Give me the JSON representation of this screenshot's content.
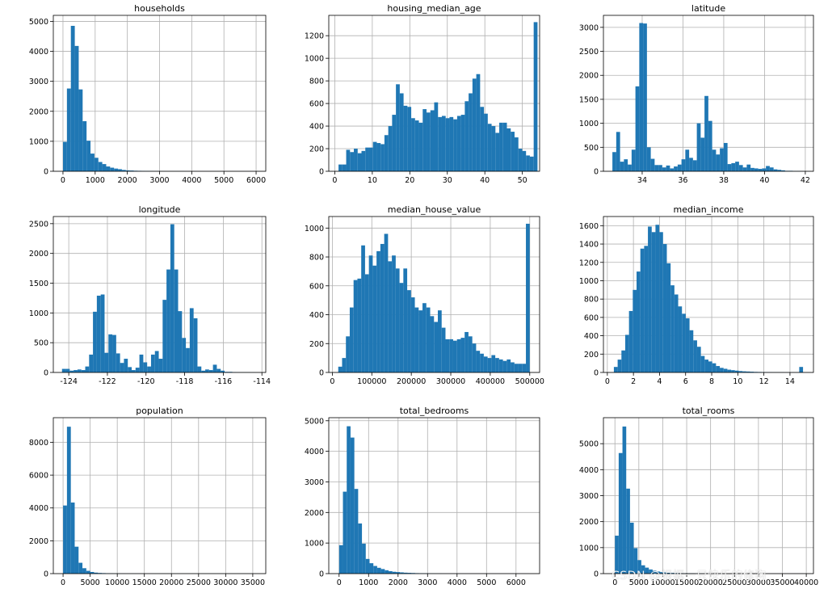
{
  "bar_color": "#1f77b4",
  "watermark": "CSDN @根据一只快乐的修狗",
  "chart_data": [
    {
      "type": "bar",
      "title": "households",
      "xlim": [
        -300,
        6300
      ],
      "ylim": [
        0,
        5200
      ],
      "xticks": [
        0,
        1000,
        2000,
        3000,
        4000,
        5000,
        6000
      ],
      "yticks": [
        0,
        1000,
        2000,
        3000,
        4000,
        5000
      ],
      "xtick_labels": [
        "0",
        "1000",
        "2000",
        "3000",
        "4000",
        "5000",
        "6000"
      ],
      "ytick_labels": [
        "0",
        "1000",
        "2000",
        "3000",
        "4000",
        "5000"
      ],
      "bin_start": 1,
      "bin_width": 122,
      "values": [
        980,
        2760,
        4850,
        4180,
        2730,
        1670,
        1020,
        590,
        450,
        310,
        240,
        160,
        120,
        90,
        70,
        45,
        30,
        25,
        18,
        15,
        12,
        10,
        8,
        6,
        5,
        4,
        3,
        3,
        2,
        2,
        2,
        1,
        1,
        1,
        1,
        1,
        1,
        1,
        1,
        1,
        1,
        1,
        1,
        1,
        1,
        1,
        1,
        1,
        1,
        1
      ]
    },
    {
      "type": "bar",
      "title": "housing_median_age",
      "xlim": [
        -1.6,
        54.6
      ],
      "ylim": [
        0,
        1380
      ],
      "xticks": [
        0,
        10,
        20,
        30,
        40,
        50
      ],
      "yticks": [
        0,
        200,
        400,
        600,
        800,
        1000,
        1200
      ],
      "xtick_labels": [
        "0",
        "10",
        "20",
        "30",
        "40",
        "50"
      ],
      "ytick_labels": [
        "0",
        "200",
        "400",
        "600",
        "800",
        "1000",
        "1200"
      ],
      "bin_start": 1,
      "bin_width": 1.02,
      "values": [
        60,
        60,
        190,
        170,
        200,
        160,
        180,
        210,
        210,
        260,
        250,
        240,
        320,
        400,
        500,
        770,
        690,
        580,
        570,
        470,
        450,
        430,
        550,
        520,
        540,
        610,
        480,
        490,
        470,
        480,
        460,
        490,
        500,
        620,
        690,
        820,
        860,
        570,
        510,
        420,
        400,
        340,
        430,
        430,
        380,
        350,
        300,
        200,
        180,
        140,
        130,
        1320
      ]
    },
    {
      "type": "bar",
      "title": "latitude",
      "xlim": [
        32.1,
        42.4
      ],
      "ylim": [
        0,
        3250
      ],
      "xticks": [
        34,
        36,
        38,
        40,
        42
      ],
      "yticks": [
        0,
        500,
        1000,
        1500,
        2000,
        2500,
        3000
      ],
      "xtick_labels": [
        "34",
        "36",
        "38",
        "40",
        "42"
      ],
      "ytick_labels": [
        "0",
        "500",
        "1000",
        "1500",
        "2000",
        "2500",
        "3000"
      ],
      "bin_start": 32.54,
      "bin_width": 0.1882,
      "values": [
        400,
        820,
        200,
        250,
        140,
        450,
        1770,
        3090,
        3080,
        500,
        260,
        130,
        130,
        80,
        120,
        60,
        100,
        140,
        250,
        450,
        280,
        230,
        1000,
        700,
        1570,
        1050,
        450,
        350,
        480,
        590,
        150,
        170,
        200,
        130,
        80,
        140,
        70,
        60,
        50,
        60,
        110,
        80,
        40,
        30,
        20,
        10,
        10,
        5,
        5,
        3
      ]
    },
    {
      "type": "bar",
      "title": "longitude",
      "xlim": [
        -124.8,
        -113.8
      ],
      "ylim": [
        0,
        2620
      ],
      "xticks": [
        -124,
        -122,
        -120,
        -118,
        -116,
        -114
      ],
      "yticks": [
        0,
        500,
        1000,
        1500,
        2000,
        2500
      ],
      "xtick_labels": [
        "-124",
        "-122",
        "-120",
        "-118",
        "-116",
        "-114"
      ],
      "ytick_labels": [
        "0",
        "500",
        "1000",
        "1500",
        "2000",
        "2500"
      ],
      "bin_start": -124.35,
      "bin_width": 0.2004,
      "values": [
        60,
        60,
        30,
        40,
        50,
        40,
        100,
        300,
        1020,
        1290,
        1310,
        330,
        640,
        630,
        320,
        160,
        230,
        90,
        40,
        80,
        300,
        170,
        100,
        300,
        360,
        230,
        1220,
        1730,
        2490,
        1730,
        1030,
        580,
        410,
        1080,
        910,
        100,
        30,
        50,
        40,
        130,
        60,
        30,
        10,
        10,
        5,
        3,
        2,
        2,
        2,
        1
      ]
    },
    {
      "type": "bar",
      "title": "median_house_value",
      "xlim": [
        -9000,
        525000
      ],
      "ylim": [
        0,
        1080
      ],
      "xticks": [
        0,
        100000,
        200000,
        300000,
        400000,
        500000
      ],
      "yticks": [
        0,
        200,
        400,
        600,
        800,
        1000
      ],
      "xtick_labels": [
        "0",
        "100000",
        "200000",
        "300000",
        "400000",
        "500000"
      ],
      "ytick_labels": [
        "0",
        "200",
        "400",
        "600",
        "800",
        "1000"
      ],
      "bin_start": 15000,
      "bin_width": 9700,
      "values": [
        40,
        100,
        250,
        450,
        640,
        650,
        880,
        680,
        810,
        740,
        840,
        890,
        960,
        770,
        810,
        720,
        620,
        720,
        570,
        520,
        450,
        430,
        480,
        450,
        390,
        350,
        430,
        310,
        230,
        230,
        220,
        230,
        240,
        280,
        250,
        200,
        150,
        130,
        110,
        100,
        120,
        100,
        90,
        80,
        90,
        70,
        60,
        60,
        60,
        1030
      ]
    },
    {
      "type": "bar",
      "title": "median_income",
      "xlim": [
        -0.3,
        15.8
      ],
      "ylim": [
        0,
        1700
      ],
      "xticks": [
        0,
        2,
        4,
        6,
        8,
        10,
        12,
        14
      ],
      "yticks": [
        0,
        200,
        400,
        600,
        800,
        1000,
        1200,
        1400,
        1600
      ],
      "xtick_labels": [
        "0",
        "2",
        "4",
        "6",
        "8",
        "10",
        "12",
        "14"
      ],
      "ytick_labels": [
        "0",
        "200",
        "400",
        "600",
        "800",
        "1000",
        "1200",
        "1400",
        "1600"
      ],
      "bin_start": 0.5,
      "bin_width": 0.29,
      "values": [
        60,
        140,
        240,
        410,
        670,
        900,
        1100,
        1350,
        1380,
        1590,
        1530,
        1610,
        1530,
        1400,
        1190,
        950,
        850,
        720,
        640,
        590,
        460,
        350,
        280,
        180,
        140,
        120,
        100,
        70,
        50,
        40,
        30,
        25,
        20,
        15,
        12,
        10,
        8,
        6,
        5,
        4,
        3,
        3,
        2,
        2,
        2,
        1,
        1,
        1,
        1,
        60
      ]
    },
    {
      "type": "bar",
      "title": "population",
      "xlim": [
        -1800,
        37400
      ],
      "ylim": [
        0,
        9500
      ],
      "xticks": [
        0,
        5000,
        10000,
        15000,
        20000,
        25000,
        30000,
        35000
      ],
      "yticks": [
        0,
        2000,
        4000,
        6000,
        8000
      ],
      "xtick_labels": [
        "0",
        "5000",
        "10000",
        "15000",
        "20000",
        "25000",
        "30000",
        "35000"
      ],
      "ytick_labels": [
        "0",
        "2000",
        "4000",
        "6000",
        "8000"
      ],
      "bin_start": 3,
      "bin_width": 714,
      "values": [
        4150,
        8950,
        4330,
        1640,
        660,
        330,
        170,
        100,
        60,
        40,
        30,
        20,
        15,
        10,
        8,
        6,
        5,
        4,
        3,
        3,
        2,
        2,
        2,
        1,
        1,
        1,
        1,
        1,
        1,
        1,
        1,
        1,
        1,
        1,
        1,
        1,
        1,
        1,
        1,
        1,
        1,
        1,
        1,
        1,
        1,
        1,
        1,
        1,
        1,
        1
      ]
    },
    {
      "type": "bar",
      "title": "total_bedrooms",
      "xlim": [
        -350,
        6800
      ],
      "ylim": [
        0,
        5100
      ],
      "xticks": [
        0,
        1000,
        2000,
        3000,
        4000,
        5000,
        6000
      ],
      "yticks": [
        0,
        1000,
        2000,
        3000,
        4000,
        5000
      ],
      "xtick_labels": [
        "0",
        "1000",
        "2000",
        "3000",
        "4000",
        "5000",
        "6000"
      ],
      "ytick_labels": [
        "0",
        "1000",
        "2000",
        "3000",
        "4000",
        "5000"
      ],
      "bin_start": 1,
      "bin_width": 129,
      "values": [
        930,
        2680,
        4820,
        4450,
        2770,
        1640,
        980,
        480,
        340,
        250,
        190,
        150,
        110,
        80,
        60,
        50,
        40,
        30,
        25,
        20,
        15,
        12,
        10,
        8,
        6,
        5,
        4,
        3,
        3,
        2,
        2,
        2,
        1,
        1,
        1,
        1,
        1,
        1,
        1,
        1,
        1,
        1,
        1,
        1,
        1,
        1,
        1,
        1,
        1,
        1
      ]
    },
    {
      "type": "bar",
      "title": "total_rooms",
      "xlim": [
        -2400,
        41500
      ],
      "ylim": [
        0,
        6000
      ],
      "xticks": [
        0,
        5000,
        10000,
        15000,
        20000,
        25000,
        30000,
        35000,
        40000
      ],
      "yticks": [
        0,
        1000,
        2000,
        3000,
        4000,
        5000
      ],
      "xtick_labels": [
        "0",
        "5000",
        "10000",
        "15000",
        "20000",
        "25000",
        "30000",
        "35000",
        "40000"
      ],
      "ytick_labels": [
        "0",
        "1000",
        "2000",
        "3000",
        "4000",
        "5000"
      ],
      "bin_start": 2,
      "bin_width": 788,
      "values": [
        1460,
        4640,
        5660,
        3270,
        1960,
        980,
        520,
        320,
        230,
        160,
        110,
        80,
        60,
        45,
        35,
        25,
        20,
        15,
        12,
        10,
        8,
        6,
        5,
        4,
        3,
        3,
        2,
        2,
        2,
        1,
        1,
        1,
        1,
        1,
        1,
        1,
        1,
        1,
        1,
        1,
        1,
        1,
        1,
        1,
        1,
        1,
        1,
        1,
        1,
        1
      ]
    }
  ]
}
